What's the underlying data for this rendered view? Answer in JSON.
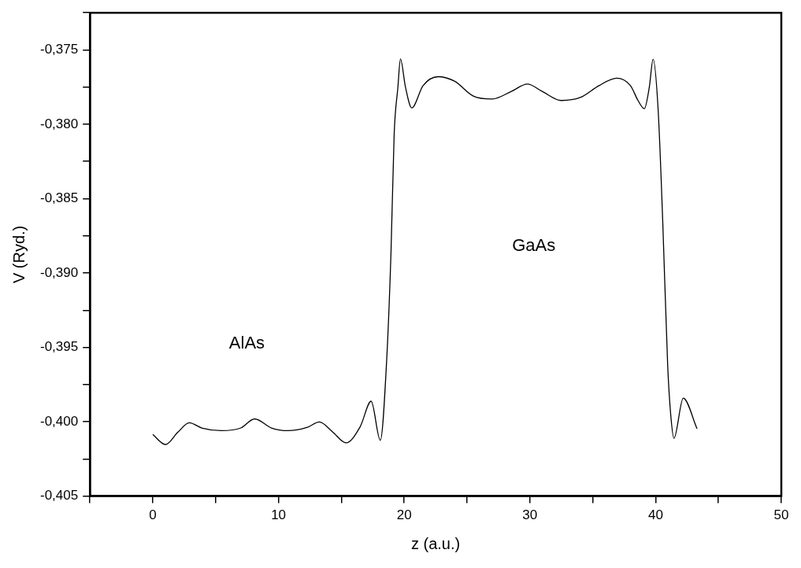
{
  "chart_data": {
    "type": "line",
    "xlabel": "z (a.u.)",
    "ylabel": "V (Ryd.)",
    "x": [
      0,
      1.0,
      2.0,
      2.9,
      3.9,
      5.45,
      7.0,
      8.1,
      9.44,
      10.76,
      12.3,
      13.25,
      14.3,
      15.37,
      16.5,
      17.37,
      18.1,
      18.6,
      18.95,
      19.2,
      19.5,
      19.7,
      20.1,
      20.6,
      21.5,
      22.7,
      24,
      25.5,
      27,
      28.5,
      29.8,
      31,
      32.5,
      34,
      35.5,
      36.9,
      38,
      38.6,
      39.1,
      39.5,
      39.8,
      40.2,
      40.57,
      40.96,
      41.2,
      41.46,
      42.2,
      43.3
    ],
    "series": [
      {
        "color": "#000000",
        "values": [
          -0.40086,
          -0.40153,
          -0.4007,
          -0.40007,
          -0.40042,
          -0.4006,
          -0.40042,
          -0.39981,
          -0.40042,
          -0.4006,
          -0.40037,
          -0.40002,
          -0.40068,
          -0.40142,
          -0.40033,
          -0.39862,
          -0.40125,
          -0.39595,
          -0.3886,
          -0.3807,
          -0.3775,
          -0.3756,
          -0.3775,
          -0.3789,
          -0.3774,
          -0.3768,
          -0.3771,
          -0.3781,
          -0.3783,
          -0.3778,
          -0.3773,
          -0.3778,
          -0.3784,
          -0.3782,
          -0.3774,
          -0.3769,
          -0.3774,
          -0.3784,
          -0.37895,
          -0.3775,
          -0.37563,
          -0.379,
          -0.3866,
          -0.3962,
          -0.3995,
          -0.40111,
          -0.39842,
          -0.40047
        ]
      }
    ],
    "xlim": [
      -5,
      50
    ],
    "xticks": [
      {
        "value": -5,
        "label": null
      },
      0,
      {
        "value": 5,
        "label": null
      },
      10,
      {
        "value": 15,
        "label": null
      },
      20,
      {
        "value": 25,
        "label": null
      },
      30,
      {
        "value": 35,
        "label": null
      },
      40,
      {
        "value": 45,
        "label": null
      },
      50
    ],
    "ylim": [
      -0.405,
      -0.3725
    ],
    "yticks": [
      {
        "value": -0.405,
        "label": "-0,405"
      },
      {
        "value": -0.4025,
        "label": null
      },
      {
        "value": -0.4,
        "label": "-0,400"
      },
      {
        "value": -0.3975,
        "label": null
      },
      {
        "value": -0.395,
        "label": "-0,395"
      },
      {
        "value": -0.3925,
        "label": null
      },
      {
        "value": -0.39,
        "label": "-0,390"
      },
      {
        "value": -0.3875,
        "label": null
      },
      {
        "value": -0.385,
        "label": "-0,385"
      },
      {
        "value": -0.3825,
        "label": null
      },
      {
        "value": -0.38,
        "label": "-0,380"
      },
      {
        "value": -0.3775,
        "label": null
      },
      {
        "value": -0.375,
        "label": "-0,375"
      },
      {
        "value": -0.3725,
        "label": null
      }
    ],
    "annotations": [
      "AlAs",
      "GaAs"
    ],
    "grid": false,
    "legend": false,
    "marker": "none",
    "line_style": "solid"
  }
}
